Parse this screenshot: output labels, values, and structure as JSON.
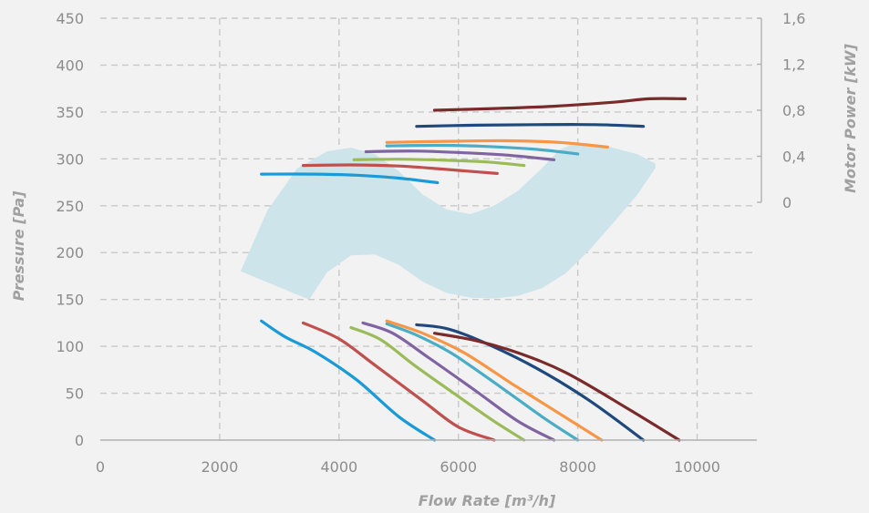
{
  "chart_data": {
    "type": "line",
    "xlabel": "Flow Rate [m³/h]",
    "ylabel": "Pressure [Pa]",
    "y2label": "Motor Power [kW]",
    "xlim": [
      0,
      11000
    ],
    "ylim": [
      0,
      450
    ],
    "y2lim": [
      0,
      1.6
    ],
    "x_ticks": [
      "0",
      "2000",
      "4000",
      "6000",
      "8000",
      "10000"
    ],
    "y_ticks": [
      "0",
      "50",
      "100",
      "150",
      "200",
      "250",
      "300",
      "350",
      "400",
      "450"
    ],
    "y2_ticks": [
      "0",
      "0,4",
      "0,8",
      "1,2",
      "1,6"
    ],
    "grid": true,
    "legend": "none",
    "operating_region_color": "#cde4ea",
    "series": [
      {
        "color": "#1a9ad6",
        "pressure": [
          [
            2700,
            127
          ],
          [
            3100,
            110
          ],
          [
            3600,
            94
          ],
          [
            4300,
            64
          ],
          [
            5000,
            25
          ],
          [
            5600,
            0
          ]
        ],
        "power": [
          [
            2700,
            0.245
          ],
          [
            3600,
            0.245
          ],
          [
            4300,
            0.235
          ],
          [
            5000,
            0.21
          ],
          [
            5650,
            0.17
          ]
        ]
      },
      {
        "color": "#c0504d",
        "pressure": [
          [
            3400,
            125
          ],
          [
            4000,
            108
          ],
          [
            4600,
            80
          ],
          [
            5400,
            42
          ],
          [
            6000,
            14
          ],
          [
            6600,
            0
          ]
        ],
        "power": [
          [
            3400,
            0.32
          ],
          [
            4200,
            0.325
          ],
          [
            5000,
            0.315
          ],
          [
            5700,
            0.29
          ],
          [
            6650,
            0.25
          ]
        ]
      },
      {
        "color": "#9bbb59",
        "pressure": [
          [
            4200,
            120
          ],
          [
            4700,
            107
          ],
          [
            5300,
            78
          ],
          [
            6100,
            42
          ],
          [
            6600,
            20
          ],
          [
            7100,
            0
          ]
        ],
        "power": [
          [
            4250,
            0.37
          ],
          [
            5000,
            0.375
          ],
          [
            5800,
            0.365
          ],
          [
            6500,
            0.35
          ],
          [
            7100,
            0.32
          ]
        ]
      },
      {
        "color": "#8064a2",
        "pressure": [
          [
            4400,
            125
          ],
          [
            4900,
            114
          ],
          [
            5500,
            88
          ],
          [
            6300,
            52
          ],
          [
            7000,
            20
          ],
          [
            7600,
            0
          ]
        ],
        "power": [
          [
            4450,
            0.44
          ],
          [
            5300,
            0.445
          ],
          [
            6100,
            0.43
          ],
          [
            6800,
            0.41
          ],
          [
            7600,
            0.37
          ]
        ]
      },
      {
        "color": "#4bacc6",
        "pressure": [
          [
            4800,
            124
          ],
          [
            5300,
            112
          ],
          [
            5900,
            92
          ],
          [
            6700,
            57
          ],
          [
            7400,
            25
          ],
          [
            8000,
            0
          ]
        ],
        "power": [
          [
            4800,
            0.49
          ],
          [
            5700,
            0.495
          ],
          [
            6500,
            0.485
          ],
          [
            7300,
            0.46
          ],
          [
            8000,
            0.42
          ]
        ]
      },
      {
        "color": "#f79646",
        "pressure": [
          [
            4800,
            127
          ],
          [
            5400,
            114
          ],
          [
            6100,
            93
          ],
          [
            6900,
            60
          ],
          [
            7700,
            28
          ],
          [
            8400,
            0
          ]
        ],
        "power": [
          [
            4800,
            0.52
          ],
          [
            5800,
            0.53
          ],
          [
            6800,
            0.535
          ],
          [
            7700,
            0.52
          ],
          [
            8500,
            0.48
          ]
        ]
      },
      {
        "color": "#1f497d",
        "pressure": [
          [
            5300,
            123
          ],
          [
            5800,
            119
          ],
          [
            6400,
            105
          ],
          [
            7300,
            77
          ],
          [
            8200,
            42
          ],
          [
            9100,
            0
          ]
        ],
        "power": [
          [
            5300,
            0.66
          ],
          [
            6300,
            0.67
          ],
          [
            7300,
            0.675
          ],
          [
            8300,
            0.675
          ],
          [
            9100,
            0.66
          ]
        ]
      },
      {
        "color": "#7a2a2a",
        "pressure": [
          [
            5600,
            114
          ],
          [
            6300,
            106
          ],
          [
            7000,
            93
          ],
          [
            7800,
            72
          ],
          [
            8800,
            35
          ],
          [
            9700,
            0
          ]
        ],
        "power": [
          [
            5600,
            0.8
          ],
          [
            6600,
            0.815
          ],
          [
            7600,
            0.835
          ],
          [
            8600,
            0.87
          ],
          [
            9200,
            0.9
          ],
          [
            9800,
            0.9
          ]
        ]
      }
    ]
  }
}
